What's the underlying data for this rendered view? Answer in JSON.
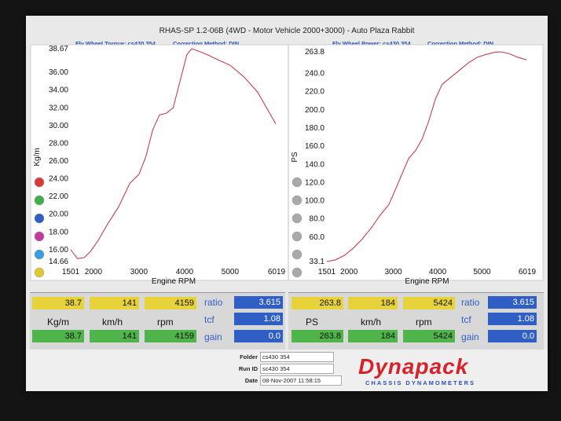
{
  "header": {
    "title": "RHAS-SP 1.2-06B  (4WD - Motor Vehicle 2000+3000) - Auto Plaza Rabbit",
    "left_sub": "Fly Wheel Torque: cs430 354",
    "left_corr": "Correction Method: DIN",
    "right_sub": "Fly Wheel Power: cs430 354",
    "right_corr": "Correction Method: DIN"
  },
  "chart_data": [
    {
      "type": "line",
      "ylabel": "Kg/m",
      "xlabel": "Engine RPM",
      "xlim": [
        1501,
        6019
      ],
      "ylim": [
        14.66,
        38.67
      ],
      "x_ticks": [
        "1501",
        "2000",
        "3000",
        "4000",
        "5000",
        "6019"
      ],
      "x_tick_values": [
        1501,
        2000,
        3000,
        4000,
        5000,
        6019
      ],
      "y_ticks": [
        "38.67",
        "36.00",
        "34.00",
        "32.00",
        "30.00",
        "28.00",
        "26.00",
        "24.00",
        "22.00",
        "20.00",
        "18.00",
        "16.00",
        "14.66"
      ],
      "y_tick_values": [
        38.67,
        36.0,
        34.0,
        32.0,
        30.0,
        28.0,
        26.0,
        24.0,
        22.0,
        20.0,
        18.0,
        16.0,
        14.66
      ],
      "color": "#c8404a",
      "series": [
        {
          "x": [
            1501,
            1650,
            1800,
            1950,
            2100,
            2300,
            2550,
            2800,
            3000,
            3150,
            3300,
            3450,
            3600,
            3750,
            3850,
            3950,
            4050,
            4159,
            4300,
            4500,
            4700,
            5000,
            5300,
            5600,
            5800,
            6000
          ],
          "y": [
            16.0,
            15.0,
            15.1,
            15.9,
            17.0,
            18.8,
            20.8,
            23.5,
            24.5,
            26.5,
            29.5,
            31.2,
            31.4,
            32.0,
            34.0,
            36.0,
            38.0,
            38.67,
            38.4,
            38.0,
            37.5,
            36.8,
            35.5,
            33.8,
            32.0,
            30.2
          ]
        }
      ]
    },
    {
      "type": "line",
      "ylabel": "PS",
      "xlabel": "Engine RPM",
      "xlim": [
        1501,
        6019
      ],
      "ylim": [
        33.1,
        263.8
      ],
      "x_ticks": [
        "1501",
        "2000",
        "3000",
        "4000",
        "5000",
        "6019"
      ],
      "x_tick_values": [
        1501,
        2000,
        3000,
        4000,
        5000,
        6019
      ],
      "y_ticks": [
        "263.8",
        "240.0",
        "220.0",
        "200.0",
        "180.0",
        "160.0",
        "140.0",
        "120.0",
        "100.0",
        "80.0",
        "60.0",
        "33.1"
      ],
      "y_tick_values": [
        263.8,
        240.0,
        220.0,
        200.0,
        180.0,
        160.0,
        140.0,
        120.0,
        100.0,
        80.0,
        60.0,
        33.1
      ],
      "color": "#c8404a",
      "series": [
        {
          "x": [
            1501,
            1700,
            1900,
            2100,
            2300,
            2500,
            2700,
            2900,
            3000,
            3200,
            3350,
            3500,
            3650,
            3800,
            3950,
            4100,
            4300,
            4500,
            4700,
            4900,
            5100,
            5300,
            5424,
            5600,
            5800,
            6000
          ],
          "y": [
            33.1,
            35.0,
            40.0,
            48.0,
            58.0,
            70.0,
            84.0,
            96.0,
            107.0,
            130.0,
            147.0,
            155.0,
            168.0,
            188.0,
            212.0,
            228.0,
            236.0,
            244.0,
            252.0,
            258.0,
            261.0,
            263.5,
            263.8,
            262.0,
            258.0,
            255.0
          ]
        }
      ]
    }
  ],
  "legend_colors": [
    "#d83a3a",
    "#3fb04a",
    "#2f5fc4",
    "#c23a9b",
    "#3a9fe0",
    "#e0c82a"
  ],
  "legend_icons": [
    "legend-dot-red",
    "legend-dot-green",
    "legend-dot-blue",
    "legend-dot-magenta",
    "legend-dot-cyan",
    "legend-dot-yellow"
  ],
  "right_legend_colors": [
    "#a9a9a9",
    "#a9a9a9",
    "#a9a9a9",
    "#a9a9a9",
    "#a9a9a9",
    "#a9a9a9"
  ],
  "torque_panel": {
    "top": [
      "38.7",
      "141",
      "4159"
    ],
    "labels": [
      "Kg/m",
      "km/h",
      "rpm"
    ],
    "bottom": [
      "38.7",
      "141",
      "4159"
    ],
    "side_labels": [
      "ratio",
      "tcf",
      "gain"
    ],
    "side_values": [
      "3.615",
      "1.08",
      "0.0"
    ]
  },
  "power_panel": {
    "top": [
      "263.8",
      "184",
      "5424"
    ],
    "labels": [
      "PS",
      "km/h",
      "rpm"
    ],
    "bottom": [
      "263.8",
      "184",
      "5424"
    ],
    "side_labels": [
      "ratio",
      "tcf",
      "gain"
    ],
    "side_values": [
      "3.615",
      "1.08",
      "0.0"
    ]
  },
  "footer": {
    "folder_label": "Folder",
    "folder_value": "cs430 354",
    "run_label": "Run ID",
    "run_value": "sc430 354",
    "date_label": "Date",
    "date_value": "08-Nov-2007   11:58:15",
    "logo_text": "Dynapack",
    "logo_sub": "CHASSIS DYNAMOMETERS"
  }
}
